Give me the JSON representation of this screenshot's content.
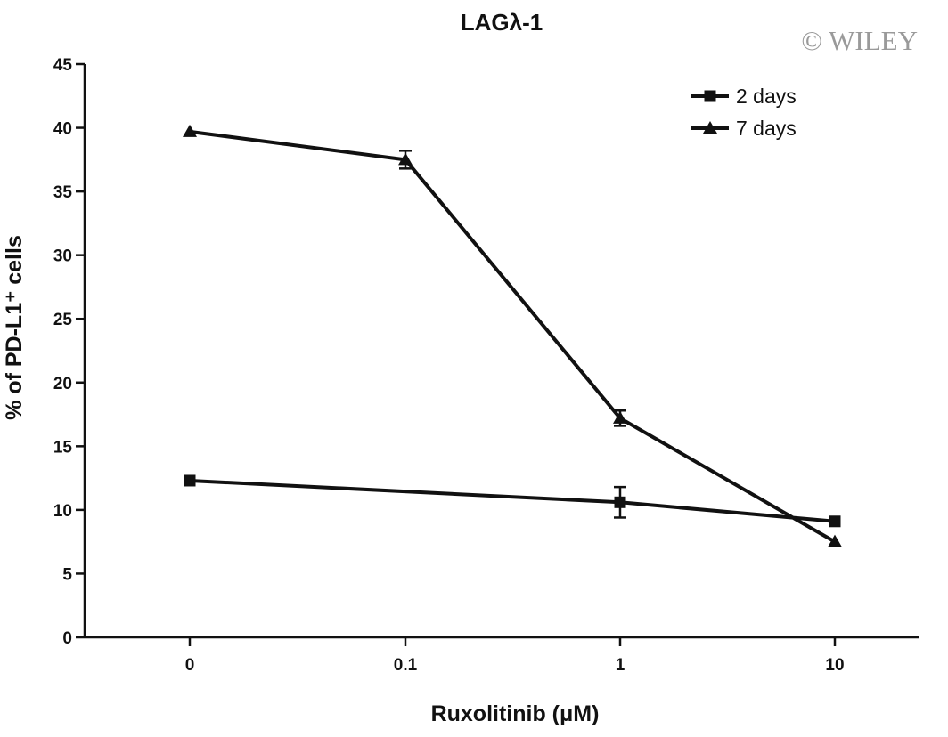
{
  "watermark": "© WILEY",
  "chart_data": {
    "type": "line",
    "title": "LAGλ-1",
    "xlabel": "Ruxolitinib (μM)",
    "ylabel": "% of PD-L1⁺ cells",
    "categories": [
      "0",
      "0.1",
      "1",
      "10"
    ],
    "ylim": [
      0,
      45
    ],
    "yticks": [
      0,
      5,
      10,
      15,
      20,
      25,
      30,
      35,
      40,
      45
    ],
    "grid": false,
    "legend_position": "top-right",
    "series": [
      {
        "name": "2 days",
        "marker": "square",
        "values": [
          12.3,
          null,
          10.6,
          9.1
        ],
        "errors": [
          0,
          null,
          1.2,
          0
        ]
      },
      {
        "name": "7 days",
        "marker": "triangle",
        "values": [
          39.7,
          37.5,
          17.2,
          7.5
        ],
        "errors": [
          0,
          0.7,
          0.6,
          0
        ]
      }
    ]
  }
}
